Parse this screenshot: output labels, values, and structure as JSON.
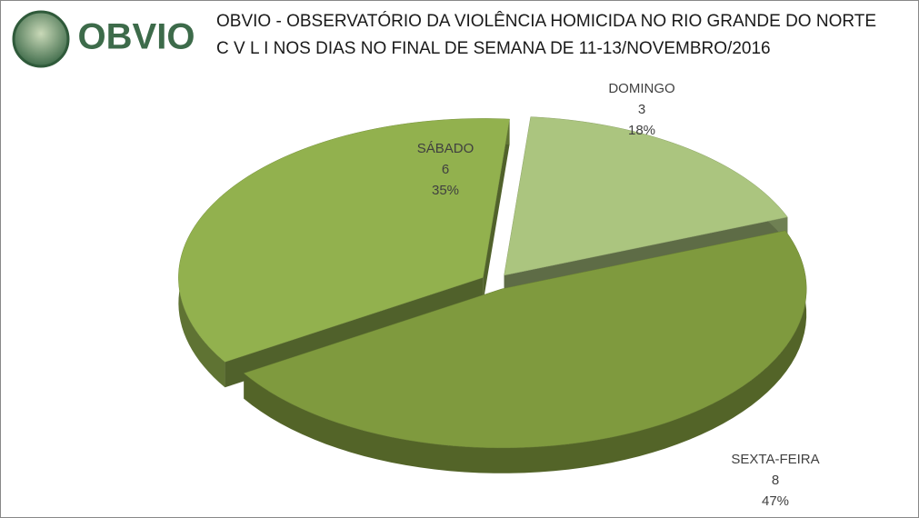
{
  "chart_data": {
    "type": "pie3d",
    "logo": "OBVIO",
    "title": "OBVIO - OBSERVATÓRIO DA VIOLÊNCIA HOMICIDA NO RIO GRANDE DO NORTE",
    "subtitle": "C V L I  NOS DIAS NO FINAL DE SEMANA DE 11-13/NOVEMBRO/2016",
    "categories": [
      "DOMINGO",
      "SEXTA-FEIRA",
      "SÁBADO"
    ],
    "values": [
      3,
      8,
      6
    ],
    "percent_values": [
      18,
      47,
      35
    ],
    "percent_labels": [
      "18%",
      "47%",
      "35%"
    ],
    "colors": [
      "#abc57f",
      "#7f9a3e",
      "#92b14e"
    ]
  }
}
